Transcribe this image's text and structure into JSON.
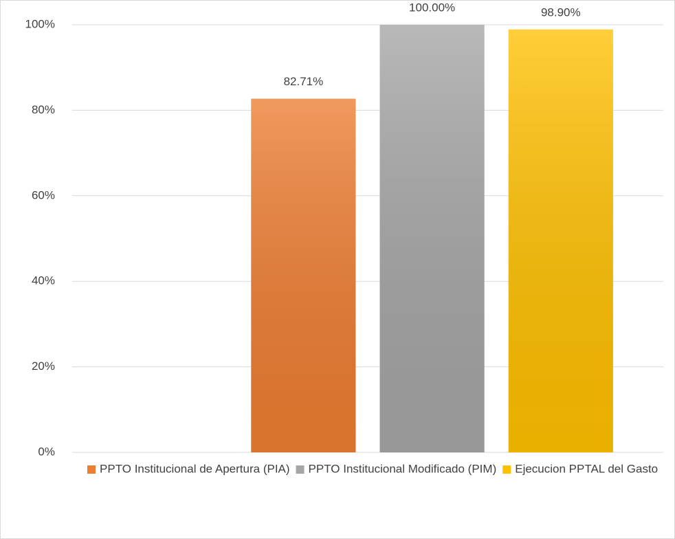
{
  "chart_data": {
    "type": "bar",
    "categories": [
      null
    ],
    "series": [
      {
        "name": "PPTO Institucional de Apertura (PIA)",
        "color": "#ed7d31",
        "values": [
          82.71
        ],
        "value_labels": [
          "82.71%"
        ]
      },
      {
        "name": "PPTO Institucional Modificado (PIM)",
        "color": "#a5a5a5",
        "values": [
          100
        ],
        "value_labels": [
          "100.00%"
        ]
      },
      {
        "name": "Ejecucion PPTAL del Gasto",
        "color": "#ffc000",
        "values": [
          98.9
        ],
        "value_labels": [
          "98.90%"
        ]
      }
    ],
    "ylim": [
      0,
      100
    ],
    "yticks": [
      {
        "value": 0,
        "label": "0%"
      },
      {
        "value": 20,
        "label": "20%"
      },
      {
        "value": 40,
        "label": "40%"
      },
      {
        "value": 60,
        "label": "60%"
      },
      {
        "value": 80,
        "label": "80%"
      },
      {
        "value": 100,
        "label": "100%"
      }
    ],
    "grid": true,
    "legend": "bottom"
  }
}
